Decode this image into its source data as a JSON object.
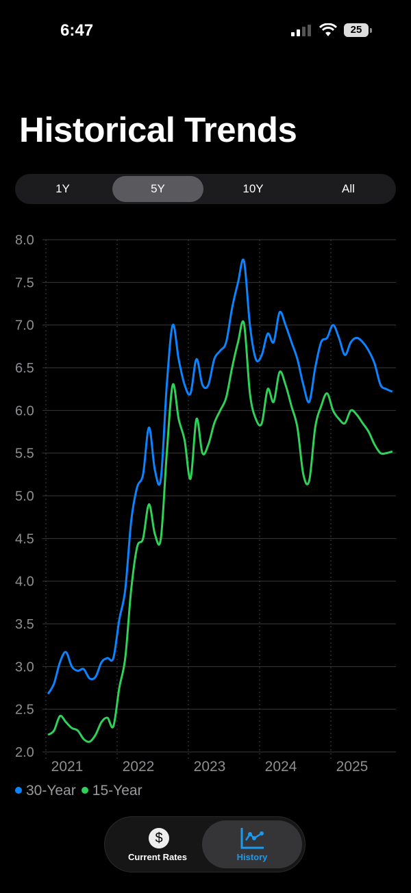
{
  "status_bar": {
    "time": "6:47",
    "battery": "25"
  },
  "header": {
    "title": "Historical Trends"
  },
  "range_selector": {
    "options": [
      "1Y",
      "5Y",
      "10Y",
      "All"
    ],
    "selected": "5Y"
  },
  "colors": {
    "series_30": "#0a84ff",
    "series_15": "#30d158",
    "accent": "#1a9bf0"
  },
  "chart_data": {
    "type": "line",
    "title": "",
    "xlabel": "",
    "ylabel": "",
    "ylim": [
      2.0,
      8.0
    ],
    "yticks": [
      "2.0",
      "2.5",
      "3.0",
      "3.5",
      "4.0",
      "4.5",
      "5.0",
      "5.5",
      "6.0",
      "6.5",
      "7.0",
      "7.5",
      "8.0"
    ],
    "xticks": [
      "2021",
      "2022",
      "2023",
      "2024",
      "2025"
    ],
    "grid": true,
    "legend": "bottom-left",
    "x": [
      "2021-01",
      "2021-02",
      "2021-03",
      "2021-04",
      "2021-05",
      "2021-06",
      "2021-07",
      "2021-08",
      "2021-09",
      "2021-10",
      "2021-11",
      "2021-12",
      "2022-01",
      "2022-02",
      "2022-03",
      "2022-04",
      "2022-05",
      "2022-06",
      "2022-07",
      "2022-08",
      "2022-09",
      "2022-10",
      "2022-11",
      "2022-12",
      "2023-01",
      "2023-02",
      "2023-03",
      "2023-04",
      "2023-05",
      "2023-06",
      "2023-07",
      "2023-08",
      "2023-09",
      "2023-10",
      "2023-11",
      "2023-12",
      "2024-01",
      "2024-02",
      "2024-03",
      "2024-04",
      "2024-05",
      "2024-06",
      "2024-07",
      "2024-08",
      "2024-09",
      "2024-10",
      "2024-11",
      "2024-12",
      "2025-01",
      "2025-02",
      "2025-03",
      "2025-04",
      "2025-05",
      "2025-06",
      "2025-07",
      "2025-08",
      "2025-09",
      "2025-10",
      "2025-11"
    ],
    "series": [
      {
        "name": "30-Year",
        "color": "#0a84ff",
        "values": [
          2.68,
          2.8,
          3.05,
          3.17,
          3.0,
          2.95,
          2.97,
          2.86,
          2.88,
          3.05,
          3.1,
          3.1,
          3.55,
          3.9,
          4.7,
          5.1,
          5.25,
          5.8,
          5.3,
          5.2,
          6.3,
          7.0,
          6.6,
          6.3,
          6.2,
          6.6,
          6.3,
          6.3,
          6.6,
          6.7,
          6.8,
          7.2,
          7.5,
          7.75,
          7.0,
          6.6,
          6.65,
          6.9,
          6.8,
          7.15,
          7.0,
          6.8,
          6.6,
          6.3,
          6.1,
          6.5,
          6.8,
          6.85,
          7.0,
          6.85,
          6.65,
          6.8,
          6.85,
          6.8,
          6.7,
          6.55,
          6.3,
          6.25,
          6.22
        ]
      },
      {
        "name": "15-Year",
        "color": "#30d158",
        "values": [
          2.2,
          2.25,
          2.42,
          2.35,
          2.28,
          2.25,
          2.15,
          2.12,
          2.2,
          2.35,
          2.4,
          2.3,
          2.75,
          3.1,
          3.9,
          4.4,
          4.5,
          4.9,
          4.55,
          4.5,
          5.5,
          6.3,
          5.9,
          5.65,
          5.2,
          5.9,
          5.5,
          5.6,
          5.85,
          6.0,
          6.15,
          6.5,
          6.8,
          7.02,
          6.2,
          5.9,
          5.85,
          6.25,
          6.1,
          6.45,
          6.3,
          6.05,
          5.8,
          5.25,
          5.18,
          5.8,
          6.05,
          6.2,
          6.0,
          5.9,
          5.85,
          6.0,
          5.95,
          5.85,
          5.75,
          5.6,
          5.5,
          5.5,
          5.52
        ]
      }
    ]
  },
  "legend": [
    {
      "label": "30-Year"
    },
    {
      "label": "15-Year"
    }
  ],
  "tab_bar": {
    "tabs": [
      {
        "label": "Current Rates",
        "icon": "dollar-icon"
      },
      {
        "label": "History",
        "icon": "chart-icon"
      }
    ],
    "selected": "History"
  }
}
